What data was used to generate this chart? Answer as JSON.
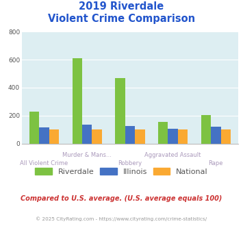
{
  "title_line1": "2019 Riverdale",
  "title_line2": "Violent Crime Comparison",
  "categories": [
    "All Violent Crime",
    "Murder & Mans...",
    "Robbery",
    "Aggravated Assault",
    "Rape"
  ],
  "series": {
    "Riverdale": [
      230,
      610,
      470,
      155,
      205
    ],
    "Illinois": [
      115,
      135,
      125,
      105,
      120
    ],
    "National": [
      100,
      100,
      100,
      100,
      100
    ]
  },
  "colors": {
    "Riverdale": "#7dc242",
    "Illinois": "#4472c4",
    "National": "#faa932"
  },
  "ylim": [
    0,
    800
  ],
  "yticks": [
    0,
    200,
    400,
    600,
    800
  ],
  "plot_bg": "#ddeef2",
  "title_color": "#2255cc",
  "xlabel_color": "#aa99bb",
  "footer_text": "Compared to U.S. average. (U.S. average equals 100)",
  "copyright_text": "© 2025 CityRating.com - https://www.cityrating.com/crime-statistics/",
  "footer_color": "#cc3333",
  "copyright_color": "#999999"
}
